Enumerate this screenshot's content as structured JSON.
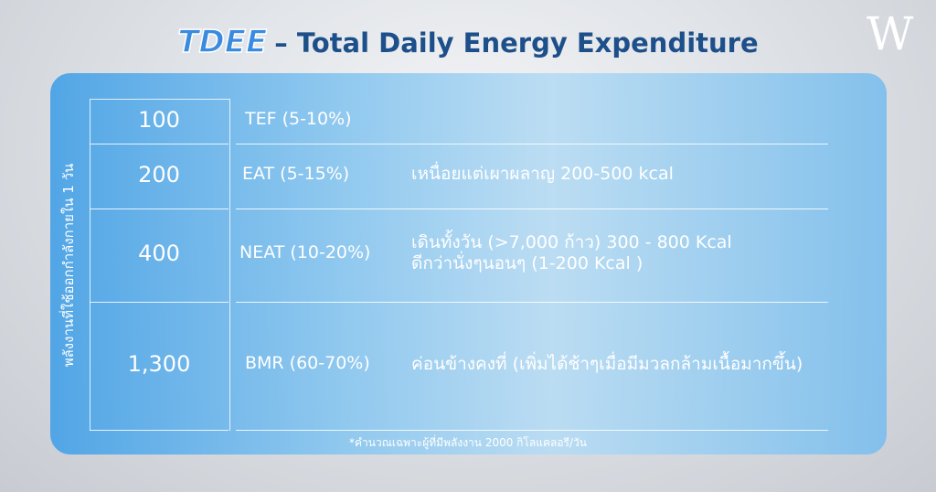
{
  "header": {
    "title_abbr": "TDEE",
    "title_rest": "– Total Daily Energy Expenditure",
    "logo": "W"
  },
  "side_label": "พลังงานที่ใช้ออกกำลังกายใน 1 วัน",
  "rows": [
    {
      "value": "100",
      "label": "TEF (5-10%)"
    },
    {
      "value": "200",
      "label": "EAT (5-15%)",
      "description": [
        "เหนื่อยแต่เผาผลาญ 200-500 kcal"
      ]
    },
    {
      "value": "400",
      "label": "NEAT (10-20%)",
      "description": [
        "เดินทั้งวัน (>7,000 ก้าว) 300 - 800 Kcal",
        "ดีกว่านั่งๆนอนๆ (1-200 Kcal )"
      ]
    },
    {
      "value": "1,300",
      "label": "BMR (60-70%)",
      "description": [
        "ค่อนข้างคงที่ (เพิ่มได้ช้าๆเมื่อมีมวลกล้ามเนื้อมากขึ้น)"
      ]
    }
  ],
  "footnote": "*คำนวณเฉพาะผู้ที่มีพลังงาน 2000 กิโลแคลอรี/วัน"
}
